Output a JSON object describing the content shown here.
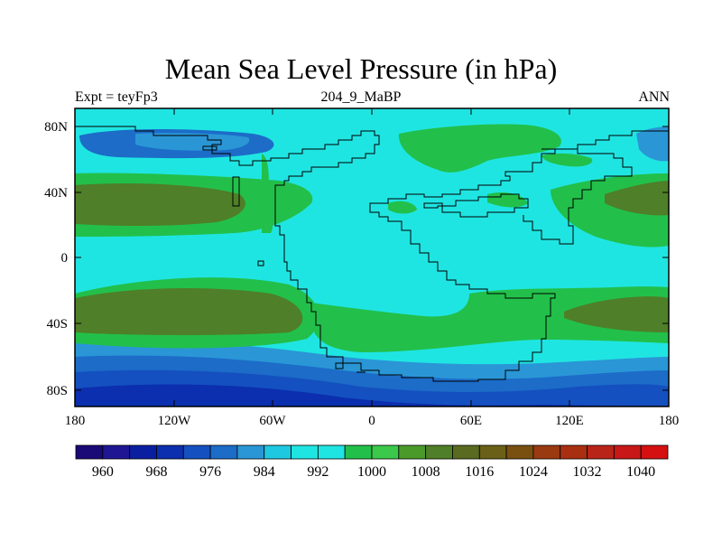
{
  "title": "Mean Sea Level Pressure (in hPa)",
  "experiment_label": "Expt = teyFp3",
  "age_label": "204_9_MaBP",
  "season_label": "ANN",
  "axes": {
    "lat_ticks": [
      "80N",
      "40N",
      "0",
      "40S",
      "80S"
    ],
    "lon_ticks": [
      "180",
      "120W",
      "60W",
      "0",
      "60E",
      "120E",
      "180"
    ]
  },
  "colorbar": {
    "labels": [
      "960",
      "968",
      "976",
      "984",
      "992",
      "1000",
      "1008",
      "1016",
      "1024",
      "1032",
      "1040"
    ],
    "colors": [
      "#1a0a78",
      "#1f1693",
      "#0a1fa0",
      "#0b2fae",
      "#1450c0",
      "#1c6cc8",
      "#2a96d6",
      "#1ec8e0",
      "#1fe5e2",
      "#1fe5e2",
      "#22c04a",
      "#3cc84a",
      "#4a9a2a",
      "#4f7f28",
      "#5a6a20",
      "#6a6018",
      "#7a5010",
      "#9a3a10",
      "#a83010",
      "#b82418",
      "#c81818",
      "#d41010"
    ]
  },
  "chart_data": {
    "type": "filled-contour-map",
    "variable": "Mean Sea Level Pressure",
    "units": "hPa",
    "levels": [
      960,
      968,
      976,
      984,
      992,
      1000,
      1008,
      1016,
      1024,
      1032,
      1040
    ],
    "lon_range": [
      -180,
      180
    ],
    "lat_range": [
      -90,
      90
    ]
  }
}
